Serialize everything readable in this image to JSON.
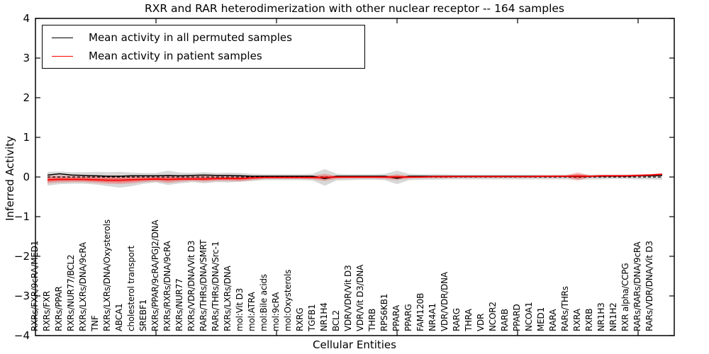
{
  "figure": {
    "title": "RXR and RAR heterodimerization with other nuclear receptor -- 164 samples"
  },
  "legend": {
    "items": [
      {
        "label": "Mean activity in all permuted samples",
        "color": "#000000"
      },
      {
        "label": "Mean activity in patient samples",
        "color": "#ff0000"
      }
    ]
  },
  "chart_data": {
    "type": "line",
    "title": "RXR and RAR heterodimerization with other nuclear receptor -- 164 samples",
    "xlabel": "Cellular Entities",
    "ylabel": "Inferred Activity",
    "ylim": [
      -4,
      4
    ],
    "yticks": [
      -4,
      -3,
      -2,
      -1,
      0,
      1,
      2,
      3,
      4
    ],
    "xticks_every": 10,
    "grid": false,
    "legend_position": "upper left",
    "categories": [
      "RXRs/FXR/9cRA/MED1",
      "RXRs/FXR",
      "RXRs/PPAR",
      "RXRs/NUR77/BCL2",
      "RXRs/LXRs/DNA/9cRA",
      "TNF",
      "RXRs/LXRs/DNA/Oxysterols",
      "ABCA1",
      "cholesterol transport",
      "SREBF1",
      "RXRs/PPAR/9cRA/PGJ2/DNA",
      "RXRs/RXRs/DNA/9cRA",
      "RXRs/NUR77",
      "RXRs/VDR/DNA/Vit D3",
      "RARs/THRs/DNA/SMRT",
      "RARs/THRs/DNA/Src-1",
      "RXRs/LXRs/DNA",
      "mol:Vit D3",
      "mol:ATRA",
      "mol:Bile acids",
      "mol:9cRA",
      "mol:Oxysterols",
      "RXRG",
      "TGFB1",
      "NR1H4",
      "BCL2",
      "VDR/VDR/Vit D3",
      "VDR/Vit D3/DNA",
      "THRB",
      "RPS6KB1",
      "PPARA",
      "PPARG",
      "FAM120B",
      "NR4A1",
      "VDR/VDR/DNA",
      "RARG",
      "THRA",
      "VDR",
      "NCOR2",
      "RARB",
      "PPARD",
      "NCOA1",
      "MED1",
      "RARA",
      "RARs/THRs",
      "RXRA",
      "RXRB",
      "NR1H3",
      "NR1H2",
      "RXR alpha/CCPG",
      "RARs/RARs/DNA/9cRA",
      "RARs/VDR/DNA/Vit D3"
    ],
    "series": [
      {
        "name": "Mean activity in all permuted samples",
        "color": "#000000",
        "line_style": "solid",
        "values": [
          0.05,
          0.08,
          0.05,
          0.04,
          0.03,
          0.02,
          0.02,
          0.03,
          0.03,
          0.03,
          0.04,
          0.03,
          0.04,
          0.05,
          0.04,
          0.04,
          0.03,
          0.02,
          0.02,
          0.02,
          0.02,
          0.02,
          0.02,
          -0.04,
          0.02,
          0.02,
          0.02,
          0.02,
          0.02,
          -0.03,
          0.02,
          0.02,
          0.02,
          0.02,
          0.02,
          0.02,
          0.02,
          0.02,
          0.02,
          0.02,
          0.02,
          0.02,
          0.02,
          0.02,
          0.01,
          0.02,
          0.02,
          0.02,
          0.02,
          0.03,
          0.03,
          0.04
        ]
      },
      {
        "name": "Mean activity in patient samples",
        "color": "#ff0000",
        "line_style": "solid",
        "values": [
          -0.07,
          -0.06,
          -0.06,
          -0.06,
          -0.07,
          -0.08,
          -0.08,
          -0.07,
          -0.06,
          -0.05,
          -0.06,
          -0.05,
          -0.05,
          -0.05,
          -0.04,
          -0.04,
          -0.04,
          -0.02,
          -0.01,
          -0.01,
          -0.01,
          -0.01,
          -0.01,
          -0.01,
          0.0,
          0.0,
          0.0,
          0.0,
          0.0,
          0.0,
          0.0,
          0.0,
          0.01,
          0.01,
          0.01,
          0.01,
          0.01,
          0.01,
          0.01,
          0.01,
          0.01,
          0.02,
          0.02,
          0.02,
          0.02,
          0.02,
          0.03,
          0.03,
          0.03,
          0.04,
          0.05,
          0.07
        ]
      }
    ],
    "bands": [
      {
        "name": "permuted-samples-spread",
        "color": "#999999",
        "opacity": 0.38,
        "upper": [
          0.13,
          0.14,
          0.12,
          0.12,
          0.13,
          0.12,
          0.13,
          0.11,
          0.1,
          0.1,
          0.16,
          0.11,
          0.1,
          0.12,
          0.1,
          0.11,
          0.1,
          0.08,
          0.07,
          0.07,
          0.07,
          0.07,
          0.08,
          0.2,
          0.08,
          0.07,
          0.07,
          0.07,
          0.08,
          0.16,
          0.08,
          0.07,
          0.07,
          0.07,
          0.06,
          0.06,
          0.06,
          0.06,
          0.06,
          0.06,
          0.06,
          0.06,
          0.06,
          0.06,
          0.07,
          0.06,
          0.06,
          0.06,
          0.06,
          0.07,
          0.07,
          0.08
        ],
        "lower": [
          -0.22,
          -0.18,
          -0.17,
          -0.17,
          -0.19,
          -0.23,
          -0.27,
          -0.23,
          -0.17,
          -0.14,
          -0.2,
          -0.16,
          -0.13,
          -0.16,
          -0.13,
          -0.14,
          -0.12,
          -0.1,
          -0.08,
          -0.08,
          -0.08,
          -0.08,
          -0.09,
          -0.22,
          -0.09,
          -0.08,
          -0.07,
          -0.07,
          -0.08,
          -0.18,
          -0.08,
          -0.07,
          -0.07,
          -0.06,
          -0.06,
          -0.06,
          -0.06,
          -0.06,
          -0.06,
          -0.06,
          -0.06,
          -0.06,
          -0.06,
          -0.06,
          -0.07,
          -0.06,
          -0.06,
          -0.05,
          -0.05,
          -0.06,
          -0.06,
          -0.07
        ]
      },
      {
        "name": "patient-samples-spread",
        "color": "#ff0000",
        "opacity": 0.22,
        "upper": [
          0.03,
          0.04,
          0.03,
          0.03,
          0.04,
          0.04,
          0.04,
          0.04,
          0.03,
          0.03,
          0.06,
          0.04,
          0.03,
          0.05,
          0.04,
          0.04,
          0.05,
          0.03,
          0.02,
          0.02,
          0.02,
          0.02,
          0.03,
          0.08,
          0.03,
          0.02,
          0.02,
          0.02,
          0.03,
          0.07,
          0.03,
          0.02,
          0.03,
          0.03,
          0.03,
          0.03,
          0.03,
          0.03,
          0.03,
          0.03,
          0.03,
          0.03,
          0.04,
          0.04,
          0.12,
          0.04,
          0.04,
          0.04,
          0.05,
          0.06,
          0.07,
          0.1
        ],
        "lower": [
          -0.16,
          -0.14,
          -0.13,
          -0.13,
          -0.15,
          -0.17,
          -0.18,
          -0.16,
          -0.13,
          -0.11,
          -0.15,
          -0.12,
          -0.1,
          -0.12,
          -0.1,
          -0.1,
          -0.11,
          -0.08,
          -0.05,
          -0.05,
          -0.05,
          -0.05,
          -0.06,
          -0.1,
          -0.05,
          -0.04,
          -0.04,
          -0.04,
          -0.05,
          -0.08,
          -0.04,
          -0.03,
          -0.03,
          -0.03,
          -0.02,
          -0.02,
          -0.02,
          -0.02,
          -0.02,
          -0.02,
          -0.02,
          -0.02,
          -0.02,
          -0.01,
          -0.09,
          -0.01,
          -0.01,
          0.0,
          0.0,
          0.01,
          0.02,
          0.04
        ]
      }
    ],
    "reference_line": {
      "y": 0,
      "color": "#000000",
      "style": "dashed"
    }
  }
}
